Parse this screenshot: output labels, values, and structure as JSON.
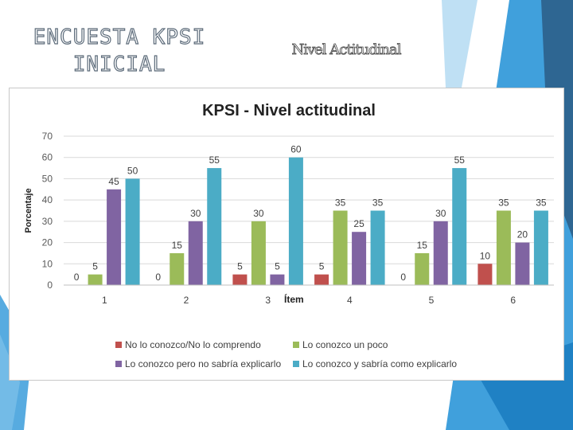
{
  "slide": {
    "title_line1": "ENCUESTA KPSI",
    "title_line2": "INICIAL",
    "subtitle": "Nivel Actitudinal"
  },
  "colors": {
    "red": "#c0504d",
    "green": "#9bbb59",
    "purple": "#8064a2",
    "teal": "#4bacc6",
    "accent_blue": "#1f8fd6",
    "accent_dark": "#2c5f8a"
  },
  "chart_data": {
    "type": "bar",
    "title": "KPSI - Nivel actitudinal",
    "xlabel": "Ítem",
    "ylabel": "Porcentaje",
    "ylim": [
      0,
      70
    ],
    "yticks": [
      0,
      10,
      20,
      30,
      40,
      50,
      60,
      70
    ],
    "grid": true,
    "legend_position": "bottom",
    "categories": [
      "1",
      "2",
      "3",
      "4",
      "5",
      "6"
    ],
    "series": [
      {
        "name": "No lo conozco/No lo comprendo",
        "color": "#c0504d",
        "values": [
          0,
          0,
          5,
          5,
          0,
          10
        ]
      },
      {
        "name": "Lo conozco un poco",
        "color": "#9bbb59",
        "values": [
          5,
          15,
          30,
          35,
          15,
          35
        ]
      },
      {
        "name": "Lo conozco pero no sabría explicarlo",
        "color": "#8064a2",
        "values": [
          45,
          30,
          5,
          25,
          30,
          20
        ]
      },
      {
        "name": "Lo conozco y sabría como explicarlo",
        "color": "#4bacc6",
        "values": [
          50,
          55,
          60,
          35,
          55,
          35
        ]
      }
    ]
  }
}
